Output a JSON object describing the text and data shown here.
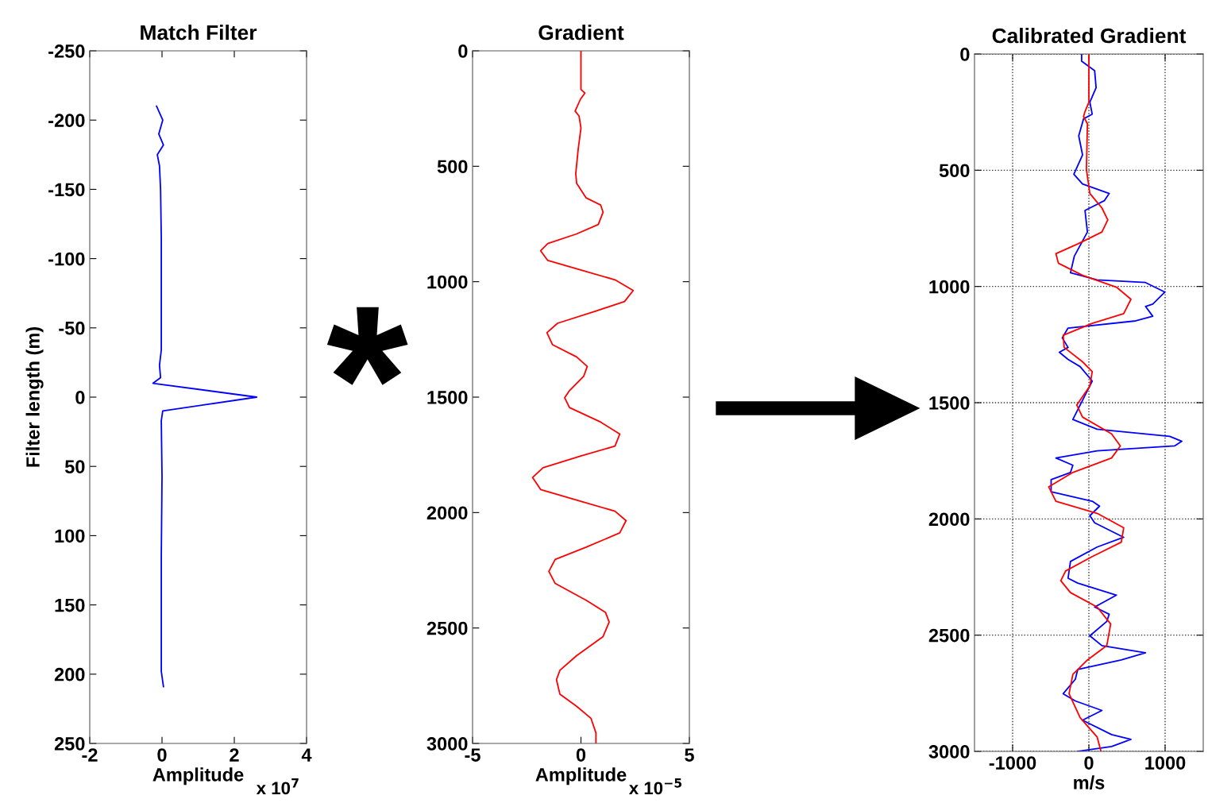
{
  "chart_data": [
    {
      "type": "line",
      "title": "Match Filter",
      "xlabel": "Amplitude",
      "ylabel": "Filter length (m)",
      "annotations": [
        "x 10$^{7}$",
        "*"
      ],
      "xlim": [
        -2,
        4
      ],
      "xticks": [
        -2,
        0,
        2,
        4
      ],
      "ylim": [
        250,
        -250
      ],
      "yticks": [
        -250,
        -200,
        -150,
        -100,
        -50,
        0,
        50,
        100,
        150,
        200,
        250
      ],
      "grid": false,
      "series": [
        {
          "color": "#0000ff",
          "x": [
            -0.15,
            0.02,
            -0.09,
            0.04,
            -0.13,
            -0.07,
            -0.04,
            -0.02,
            -0.02,
            -0.07,
            -0.04,
            -0.25,
            2.62,
            0.02,
            -0.02,
            0,
            -0.02,
            -0.02,
            0.04
          ],
          "values": [
            -210,
            -200,
            -190,
            -182,
            -175,
            -167,
            -150,
            -115,
            -34,
            -23,
            -14,
            -10,
            0,
            10,
            17,
            57,
            115,
            198,
            209
          ]
        }
      ]
    },
    {
      "type": "line",
      "title": "Gradient",
      "xlabel": "Amplitude",
      "annotations": [
        "x 10$^{−5}$"
      ],
      "xlim": [
        -5,
        5
      ],
      "xticks": [
        -5,
        0,
        5
      ],
      "ylim": [
        3000,
        0
      ],
      "yticks": [
        0,
        500,
        1000,
        1500,
        2000,
        2500,
        3000
      ],
      "grid": false,
      "series": [
        {
          "color": "#ff0000",
          "x": [
            0,
            0,
            0.18,
            -0.02,
            -0.27,
            -0.09,
            0,
            -0.13,
            -0.24,
            -0.2,
            0.24,
            0.91,
            1.02,
            0.8,
            -0.2,
            -1.53,
            -1.86,
            -1.53,
            0.02,
            1.57,
            2.41,
            2.01,
            0.69,
            -1.08,
            -1.57,
            -1.31,
            -0.2,
            0.29,
            0.13,
            -0.53,
            -0.75,
            -0.53,
            0.91,
            1.79,
            1.57,
            0.02,
            -1.75,
            -2.23,
            -1.86,
            0.02,
            1.57,
            2.08,
            1.79,
            0.24,
            -1.19,
            -1.48,
            -1.19,
            0.24,
            1.13,
            1.3,
            1.02,
            -0.2,
            -0.97,
            -1.13,
            -0.97,
            -0.2,
            0.46,
            0.69,
            0.69
          ],
          "values": [
            0,
            167,
            183,
            209,
            261,
            282,
            334,
            428,
            532,
            574,
            637,
            668,
            699,
            752,
            793,
            835,
            866,
            908,
            950,
            992,
            1038,
            1086,
            1127,
            1180,
            1221,
            1273,
            1326,
            1367,
            1409,
            1472,
            1503,
            1545,
            1608,
            1660,
            1712,
            1754,
            1806,
            1848,
            1900,
            1952,
            1994,
            2035,
            2088,
            2150,
            2203,
            2255,
            2307,
            2380,
            2432,
            2474,
            2537,
            2620,
            2683,
            2724,
            2787,
            2839,
            2891,
            2954,
            3000
          ]
        }
      ]
    },
    {
      "type": "line",
      "title": "Calibrated Gradient",
      "xlabel": "m/s",
      "xlim": [
        -1500,
        1500
      ],
      "xticks": [
        -1000,
        0,
        1000
      ],
      "ylim": [
        3000,
        0
      ],
      "yticks": [
        0,
        500,
        1000,
        1500,
        2000,
        2500,
        3000
      ],
      "grid": true,
      "series": [
        {
          "color": "#0000ff",
          "x": [
            -95,
            -95,
            76,
            95,
            13,
            44,
            -70,
            -133,
            -83,
            -197,
            -83,
            267,
            203,
            -51,
            -19,
            -190,
            -241,
            108,
            743,
            997,
            838,
            743,
            838,
            616,
            -273,
            -349,
            -273,
            -387,
            -273,
            -114,
            44,
            -51,
            -210,
            108,
            1060,
            1219,
            1124,
            108,
            -432,
            -210,
            -241,
            -495,
            -495,
            44,
            140,
            13,
            76,
            457,
            108,
            -241,
            -273,
            -146,
            362,
            76,
            267,
            235,
            13,
            171,
            743,
            425,
            -146,
            -178,
            -337,
            -178,
            171,
            -83,
            298,
            552,
            298,
            -146
          ],
          "values": [
            0,
            31,
            72,
            145,
            207,
            259,
            279,
            352,
            434,
            517,
            559,
            600,
            631,
            673,
            766,
            869,
            941,
            972,
            983,
            1024,
            1076,
            1086,
            1128,
            1148,
            1179,
            1221,
            1262,
            1283,
            1314,
            1345,
            1407,
            1469,
            1572,
            1614,
            1645,
            1666,
            1686,
            1707,
            1738,
            1769,
            1800,
            1831,
            1883,
            1924,
            1945,
            1986,
            2017,
            2079,
            2121,
            2183,
            2255,
            2276,
            2328,
            2379,
            2410,
            2441,
            2503,
            2545,
            2576,
            2607,
            2648,
            2690,
            2752,
            2783,
            2824,
            2866,
            2928,
            2948,
            2979,
            3000
          ]
        },
        {
          "color": "#ff0000",
          "x": [
            0,
            0,
            -51,
            -70,
            -19,
            -32,
            13,
            171,
            248,
            171,
            -146,
            -432,
            -400,
            -83,
            362,
            552,
            457,
            44,
            -337,
            -324,
            -83,
            44,
            13,
            -159,
            -83,
            298,
            413,
            298,
            -210,
            -527,
            -432,
            108,
            457,
            425,
            44,
            -305,
            -368,
            -241,
            108,
            286,
            235,
            -19,
            -210,
            -260,
            -114,
            108,
            159
          ],
          "values": [
            0,
            207,
            248,
            269,
            300,
            497,
            600,
            662,
            714,
            766,
            817,
            859,
            900,
            952,
            1003,
            1055,
            1117,
            1159,
            1210,
            1262,
            1324,
            1366,
            1428,
            1510,
            1562,
            1634,
            1686,
            1738,
            1800,
            1862,
            1924,
            1976,
            2038,
            2100,
            2162,
            2224,
            2266,
            2317,
            2379,
            2452,
            2545,
            2607,
            2669,
            2752,
            2855,
            2938,
            3000
          ]
        }
      ]
    }
  ]
}
